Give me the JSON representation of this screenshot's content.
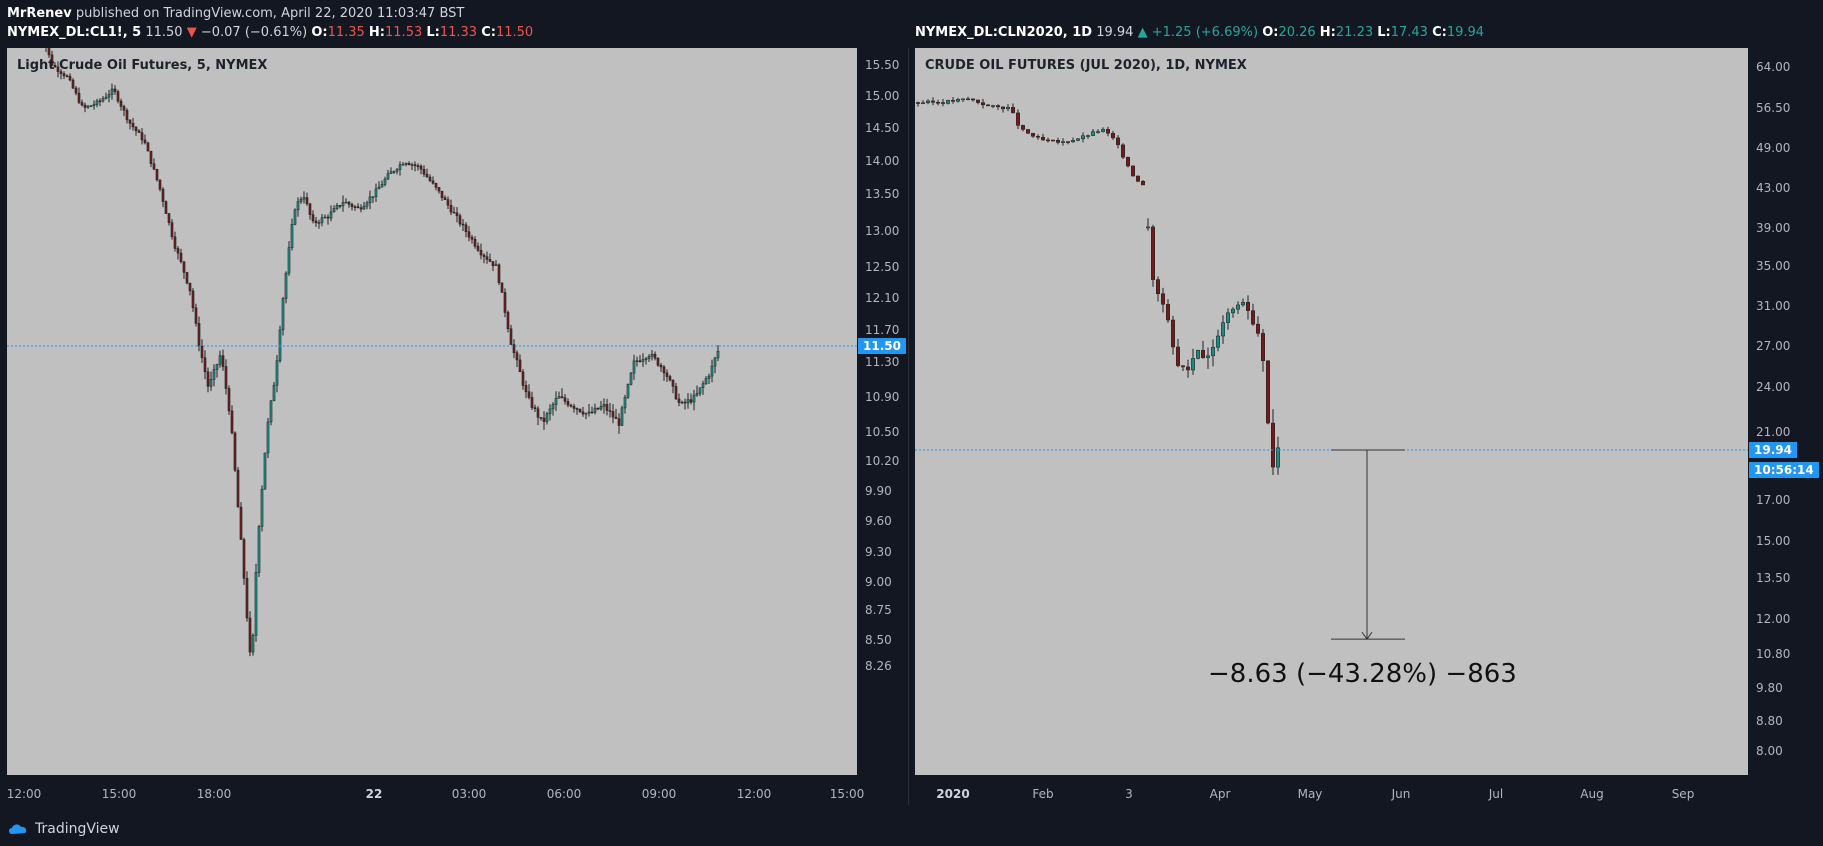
{
  "header": {
    "author": "MrRenev",
    "published_text": "published on TradingView.com, April 22, 2020 11:03:47 BST"
  },
  "left_quote": {
    "symbol": "NYMEX_DL:CL1!, 5",
    "price": "11.50",
    "change": "−0.07 (−0.61%)",
    "o_label": "O:",
    "o": "11.35",
    "h_label": "H:",
    "h": "11.53",
    "l_label": "L:",
    "l": "11.33",
    "c_label": "C:",
    "c": "11.50"
  },
  "right_quote": {
    "symbol": "NYMEX_DL:CLN2020, 1D",
    "price": "19.94",
    "change": "+1.25 (+6.69%)",
    "o_label": "O:",
    "o": "20.26",
    "h_label": "H:",
    "h": "21.23",
    "l_label": "L:",
    "l": "17.43",
    "c_label": "C:",
    "c": "19.94"
  },
  "footer": {
    "brand": "TradingView"
  },
  "colors": {
    "background": "#131722",
    "plot": "#c0c0c0",
    "up": "#26a69a",
    "down": "#ef5350",
    "accent": "#2196f3"
  },
  "chart_data": [
    {
      "type": "candlestick",
      "title": "Light Crude Oil Futures, 5, NYMEX",
      "y_ticks": [
        "15.50",
        "15.00",
        "14.50",
        "14.00",
        "13.50",
        "13.00",
        "12.50",
        "12.10",
        "11.70",
        "11.30",
        "10.90",
        "10.50",
        "10.20",
        "9.90",
        "9.60",
        "9.30",
        "9.00",
        "8.75",
        "8.50",
        "8.26"
      ],
      "x_ticks": [
        "12:00",
        "15:00",
        "18:00",
        "22",
        "03:00",
        "06:00",
        "09:00",
        "12:00",
        "15:00"
      ],
      "bold_x_tick": "22",
      "last_price_label": "11.50",
      "last_price": 11.5,
      "approx_close_path": [
        [
          0,
          16.2
        ],
        [
          0.5,
          15.5
        ],
        [
          1,
          15.3
        ],
        [
          1.5,
          14.8
        ],
        [
          2,
          14.9
        ],
        [
          2.5,
          15.1
        ],
        [
          3,
          14.6
        ],
        [
          3.5,
          14.3
        ],
        [
          4,
          13.6
        ],
        [
          4.5,
          12.8
        ],
        [
          5,
          12.2
        ],
        [
          5.3,
          11.5
        ],
        [
          5.6,
          11.0
        ],
        [
          6,
          11.4
        ],
        [
          6.3,
          10.7
        ],
        [
          6.6,
          9.6
        ],
        [
          7,
          8.2
        ],
        [
          7.2,
          9.4
        ],
        [
          7.5,
          10.5
        ],
        [
          7.8,
          11.2
        ],
        [
          8,
          12.0
        ],
        [
          8.4,
          13.3
        ],
        [
          8.7,
          13.5
        ],
        [
          9,
          13.1
        ],
        [
          9.5,
          13.2
        ],
        [
          10,
          13.4
        ],
        [
          10.5,
          13.3
        ],
        [
          11,
          13.5
        ],
        [
          11.5,
          13.8
        ],
        [
          12,
          14.0
        ],
        [
          12.5,
          13.9
        ],
        [
          13,
          13.6
        ],
        [
          13.5,
          13.3
        ],
        [
          14,
          13.0
        ],
        [
          14.5,
          12.7
        ],
        [
          15,
          12.5
        ],
        [
          15.5,
          11.5
        ],
        [
          16,
          10.9
        ],
        [
          16.5,
          10.6
        ],
        [
          17,
          10.9
        ],
        [
          17.5,
          10.8
        ],
        [
          18,
          10.7
        ],
        [
          18.5,
          10.8
        ],
        [
          19,
          10.6
        ],
        [
          19.5,
          11.3
        ],
        [
          20,
          11.4
        ],
        [
          20.5,
          11.2
        ],
        [
          21,
          10.8
        ],
        [
          21.5,
          10.9
        ],
        [
          22,
          11.2
        ],
        [
          22.3,
          11.5
        ]
      ]
    },
    {
      "type": "candlestick",
      "title": "CRUDE OIL FUTURES (JUL 2020), 1D, NYMEX",
      "y_ticks": [
        "64.00",
        "56.50",
        "49.00",
        "43.00",
        "39.00",
        "35.00",
        "31.00",
        "27.00",
        "24.00",
        "21.00",
        "17.00",
        "15.00",
        "13.50",
        "12.00",
        "10.80",
        "9.80",
        "8.80",
        "8.00"
      ],
      "x_ticks": [
        "2020",
        "Feb",
        "3",
        "Apr",
        "May",
        "Jun",
        "Jul",
        "Aug",
        "Sep"
      ],
      "bold_x_tick": "2020",
      "last_price_label": "19.94",
      "countdown_label": "10:56:14",
      "last_price": 19.94,
      "approx_close_path": [
        [
          0,
          57.5
        ],
        [
          5,
          57.6
        ],
        [
          10,
          58.2
        ],
        [
          14,
          56.8
        ],
        [
          18,
          56.5
        ],
        [
          20,
          52.5
        ],
        [
          24,
          50.5
        ],
        [
          28,
          50.0
        ],
        [
          32,
          51.0
        ],
        [
          36,
          52.5
        ],
        [
          38,
          51.0
        ],
        [
          40,
          48.0
        ],
        [
          42,
          45.0
        ],
        [
          44,
          43.5
        ],
        [
          45,
          39.0
        ],
        [
          46,
          33.5
        ],
        [
          48,
          31.0
        ],
        [
          50,
          26.0
        ],
        [
          52,
          25.0
        ],
        [
          54,
          26.5
        ],
        [
          56,
          26.0
        ],
        [
          58,
          28.0
        ],
        [
          60,
          30.5
        ],
        [
          62,
          31.5
        ],
        [
          64,
          30.0
        ],
        [
          66,
          27.5
        ],
        [
          67,
          22.0
        ],
        [
          68,
          19.0
        ],
        [
          69,
          19.94
        ]
      ],
      "measure": {
        "label": "−8.63 (−43.28%) −863",
        "from": 19.94,
        "to": 11.31
      }
    }
  ]
}
